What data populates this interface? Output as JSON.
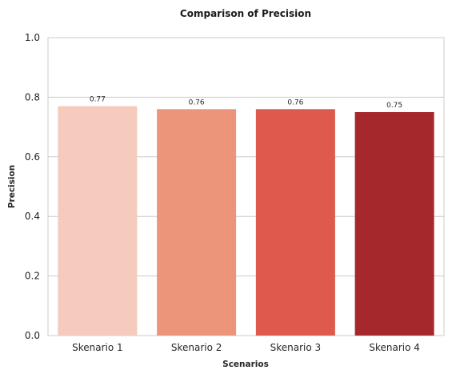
{
  "chart_data": {
    "type": "bar",
    "title": "Comparison of Precision",
    "xlabel": "Scenarios",
    "ylabel": "Precision",
    "categories": [
      "Skenario 1",
      "Skenario 2",
      "Skenario 3",
      "Skenario 4"
    ],
    "values": [
      0.77,
      0.76,
      0.76,
      0.75
    ],
    "data_labels": [
      "0.77",
      "0.76",
      "0.76",
      "0.75"
    ],
    "ylim": [
      0,
      1.0
    ],
    "yticks": [
      0.0,
      0.2,
      0.4,
      0.6,
      0.8,
      1.0
    ],
    "ytick_labels": [
      "0.0",
      "0.2",
      "0.4",
      "0.6",
      "0.8",
      "1.0"
    ],
    "colors": [
      "#f4cbbd",
      "#ec957b",
      "#dd5a4c",
      "#a5282c"
    ],
    "grid": true,
    "legend": "none"
  }
}
